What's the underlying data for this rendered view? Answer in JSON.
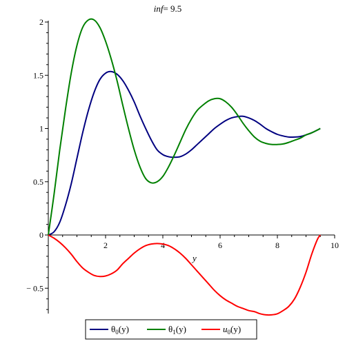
{
  "chart_data": {
    "type": "line",
    "title": {
      "param": "inf",
      "sep": "= ",
      "value": "9.5"
    },
    "xlabel": "y",
    "ylabel": "",
    "xlim": [
      0,
      10
    ],
    "ylim": [
      -0.75,
      2.05
    ],
    "x_ticks": [
      2,
      4,
      6,
      8,
      10
    ],
    "x_tick_labels": [
      "2",
      "4",
      "6",
      "8",
      "10"
    ],
    "y_ticks": [
      -0.5,
      0,
      0.5,
      1,
      1.5,
      2
    ],
    "y_tick_labels": [
      "− 0.5",
      "0",
      "0.5",
      "1",
      "1.5",
      "2"
    ],
    "grid": false,
    "legend_position": "bottom",
    "series": [
      {
        "name": "θ0(y)",
        "label_base": "θ",
        "label_sub": "0",
        "label_arg": "(y)",
        "color": "#000080",
        "points": [
          [
            0,
            0
          ],
          [
            0.2,
            0.03
          ],
          [
            0.4,
            0.12
          ],
          [
            0.6,
            0.28
          ],
          [
            0.8,
            0.48
          ],
          [
            1.0,
            0.72
          ],
          [
            1.2,
            0.96
          ],
          [
            1.4,
            1.17
          ],
          [
            1.6,
            1.34
          ],
          [
            1.8,
            1.46
          ],
          [
            2.0,
            1.52
          ],
          [
            2.2,
            1.535
          ],
          [
            2.4,
            1.51
          ],
          [
            2.6,
            1.45
          ],
          [
            2.8,
            1.36
          ],
          [
            3.0,
            1.25
          ],
          [
            3.2,
            1.12
          ],
          [
            3.4,
            1.0
          ],
          [
            3.6,
            0.89
          ],
          [
            3.8,
            0.8
          ],
          [
            4.0,
            0.755
          ],
          [
            4.2,
            0.735
          ],
          [
            4.4,
            0.73
          ],
          [
            4.6,
            0.735
          ],
          [
            4.8,
            0.76
          ],
          [
            5.0,
            0.8
          ],
          [
            5.2,
            0.85
          ],
          [
            5.4,
            0.9
          ],
          [
            5.6,
            0.95
          ],
          [
            5.8,
            1.0
          ],
          [
            6.0,
            1.04
          ],
          [
            6.2,
            1.075
          ],
          [
            6.4,
            1.1
          ],
          [
            6.6,
            1.112
          ],
          [
            6.8,
            1.115
          ],
          [
            7.0,
            1.1
          ],
          [
            7.2,
            1.075
          ],
          [
            7.4,
            1.04
          ],
          [
            7.6,
            1.0
          ],
          [
            7.8,
            0.97
          ],
          [
            8.0,
            0.945
          ],
          [
            8.2,
            0.93
          ],
          [
            8.4,
            0.92
          ],
          [
            8.6,
            0.92
          ],
          [
            8.8,
            0.925
          ],
          [
            9.0,
            0.94
          ],
          [
            9.2,
            0.96
          ],
          [
            9.5,
            1.0
          ]
        ]
      },
      {
        "name": "θ1(y)",
        "label_base": "θ",
        "label_sub": "1",
        "label_arg": "(y)",
        "color": "#008000",
        "points": [
          [
            0,
            0
          ],
          [
            0.2,
            0.38
          ],
          [
            0.4,
            0.8
          ],
          [
            0.6,
            1.18
          ],
          [
            0.8,
            1.52
          ],
          [
            1.0,
            1.78
          ],
          [
            1.2,
            1.95
          ],
          [
            1.4,
            2.02
          ],
          [
            1.6,
            2.02
          ],
          [
            1.8,
            1.95
          ],
          [
            2.0,
            1.82
          ],
          [
            2.2,
            1.65
          ],
          [
            2.4,
            1.45
          ],
          [
            2.6,
            1.22
          ],
          [
            2.8,
            1.0
          ],
          [
            3.0,
            0.8
          ],
          [
            3.2,
            0.64
          ],
          [
            3.4,
            0.53
          ],
          [
            3.6,
            0.49
          ],
          [
            3.8,
            0.5
          ],
          [
            4.0,
            0.55
          ],
          [
            4.2,
            0.64
          ],
          [
            4.4,
            0.75
          ],
          [
            4.6,
            0.87
          ],
          [
            4.8,
            0.99
          ],
          [
            5.0,
            1.09
          ],
          [
            5.2,
            1.17
          ],
          [
            5.4,
            1.22
          ],
          [
            5.6,
            1.26
          ],
          [
            5.8,
            1.28
          ],
          [
            6.0,
            1.28
          ],
          [
            6.2,
            1.25
          ],
          [
            6.4,
            1.2
          ],
          [
            6.6,
            1.13
          ],
          [
            6.8,
            1.05
          ],
          [
            7.0,
            0.98
          ],
          [
            7.2,
            0.92
          ],
          [
            7.4,
            0.88
          ],
          [
            7.6,
            0.86
          ],
          [
            7.8,
            0.85
          ],
          [
            8.0,
            0.85
          ],
          [
            8.2,
            0.855
          ],
          [
            8.4,
            0.87
          ],
          [
            8.6,
            0.89
          ],
          [
            8.8,
            0.91
          ],
          [
            9.0,
            0.94
          ],
          [
            9.2,
            0.96
          ],
          [
            9.5,
            1.0
          ]
        ]
      },
      {
        "name": "u0(y)",
        "label_base": "u",
        "label_sub": "0",
        "label_arg": "(y)",
        "color": "#ff0000",
        "points": [
          [
            0,
            0
          ],
          [
            0.2,
            -0.03
          ],
          [
            0.4,
            -0.07
          ],
          [
            0.6,
            -0.12
          ],
          [
            0.8,
            -0.18
          ],
          [
            1.0,
            -0.25
          ],
          [
            1.2,
            -0.31
          ],
          [
            1.4,
            -0.35
          ],
          [
            1.6,
            -0.38
          ],
          [
            1.8,
            -0.39
          ],
          [
            2.0,
            -0.385
          ],
          [
            2.2,
            -0.365
          ],
          [
            2.4,
            -0.33
          ],
          [
            2.6,
            -0.27
          ],
          [
            2.8,
            -0.22
          ],
          [
            3.0,
            -0.17
          ],
          [
            3.2,
            -0.13
          ],
          [
            3.4,
            -0.1
          ],
          [
            3.6,
            -0.085
          ],
          [
            3.8,
            -0.08
          ],
          [
            4.0,
            -0.085
          ],
          [
            4.2,
            -0.1
          ],
          [
            4.4,
            -0.13
          ],
          [
            4.6,
            -0.17
          ],
          [
            4.8,
            -0.22
          ],
          [
            5.0,
            -0.28
          ],
          [
            5.2,
            -0.34
          ],
          [
            5.4,
            -0.4
          ],
          [
            5.6,
            -0.46
          ],
          [
            5.8,
            -0.52
          ],
          [
            6.0,
            -0.57
          ],
          [
            6.2,
            -0.61
          ],
          [
            6.4,
            -0.64
          ],
          [
            6.6,
            -0.67
          ],
          [
            6.8,
            -0.69
          ],
          [
            7.0,
            -0.71
          ],
          [
            7.2,
            -0.72
          ],
          [
            7.4,
            -0.74
          ],
          [
            7.6,
            -0.75
          ],
          [
            7.8,
            -0.75
          ],
          [
            8.0,
            -0.74
          ],
          [
            8.2,
            -0.71
          ],
          [
            8.4,
            -0.67
          ],
          [
            8.6,
            -0.6
          ],
          [
            8.8,
            -0.49
          ],
          [
            9.0,
            -0.35
          ],
          [
            9.2,
            -0.18
          ],
          [
            9.4,
            -0.04
          ],
          [
            9.5,
            0
          ]
        ]
      }
    ]
  }
}
